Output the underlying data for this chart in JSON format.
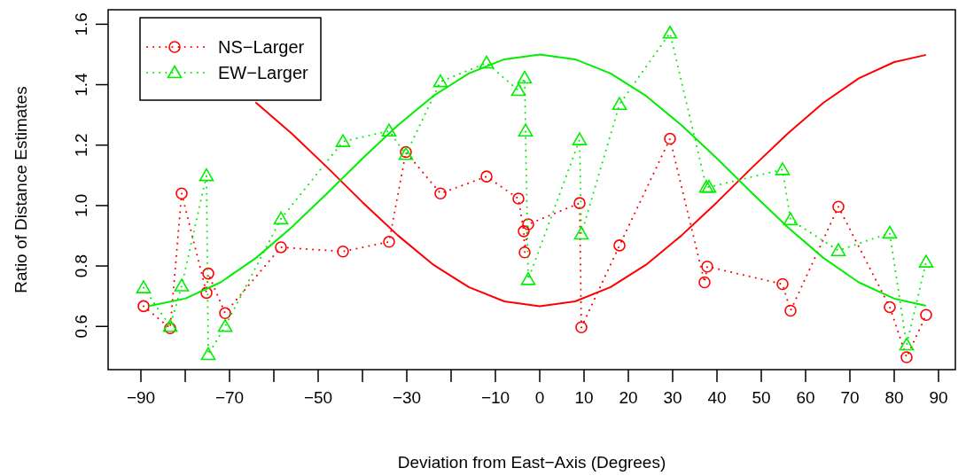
{
  "chart_data": {
    "type": "line",
    "xlabel": "Deviation from East−Axis (Degrees)",
    "ylabel": "Ratio of Distance Estimates",
    "xlim": [
      -97.4,
      93.8
    ],
    "ylim": [
      0.457,
      1.648
    ],
    "xticks": [
      {
        "value": -90,
        "label": "−90"
      },
      {
        "value": -80,
        "label": null
      },
      {
        "value": -70,
        "label": "−70"
      },
      {
        "value": -60,
        "label": null
      },
      {
        "value": -50,
        "label": "−50"
      },
      {
        "value": -40,
        "label": null
      },
      {
        "value": -30,
        "label": "−30"
      },
      {
        "value": -20,
        "label": null
      },
      {
        "value": -10,
        "label": "−10"
      },
      0,
      10,
      20,
      30,
      40,
      50,
      60,
      70,
      80,
      90
    ],
    "yticks": [
      0.6,
      0.8,
      {
        "value": 1,
        "label": "1.0"
      },
      1.2,
      1.4,
      1.6
    ],
    "grid": false,
    "legend": "top left",
    "series": [
      {
        "name": "NS−Larger",
        "color": "#ff0000",
        "marker": "circle",
        "line_style": "dotted",
        "x": [
          -89.4,
          -83.4,
          -80.8,
          -75.2,
          -74.8,
          -71,
          -58.4,
          -44.4,
          -34,
          -30.2,
          -22.4,
          -12,
          -4.8,
          -3.6,
          -3.4,
          -2.6,
          9,
          9.4,
          18,
          29.4,
          37.2,
          37.8,
          54.8,
          56.6,
          67.4,
          79,
          82.8,
          87.2
        ],
        "values": [
          0.667,
          0.594,
          1.04,
          0.711,
          0.775,
          0.644,
          0.862,
          0.848,
          0.88,
          1.177,
          1.04,
          1.096,
          1.023,
          0.915,
          0.845,
          0.938,
          1.008,
          0.597,
          0.868,
          1.221,
          0.746,
          0.798,
          0.74,
          0.652,
          0.996,
          0.664,
          0.498,
          0.638
        ]
      },
      {
        "name": "EW−Larger",
        "color": "#00ee00",
        "marker": "triangle",
        "line_style": "dotted",
        "x": [
          -89.4,
          -83.4,
          -80.8,
          -75.2,
          -74.8,
          -71,
          -58.4,
          -44.4,
          -34,
          -30.2,
          -22.4,
          -12,
          -4.8,
          -3.4,
          -3.2,
          -2.6,
          9,
          9.4,
          18,
          29.4,
          37.6,
          38.2,
          54.8,
          56.6,
          67.4,
          79,
          82.8,
          87.2
        ],
        "values": [
          0.728,
          0.6,
          0.734,
          1.099,
          0.507,
          0.6,
          0.956,
          1.212,
          1.247,
          1.169,
          1.41,
          1.472,
          1.381,
          1.422,
          1.247,
          0.755,
          1.218,
          0.906,
          1.335,
          1.571,
          1.061,
          1.061,
          1.119,
          0.953,
          0.851,
          0.909,
          0.539,
          0.813
        ]
      },
      {
        "color": "#ff0000",
        "marker": "none",
        "line_style": "solid",
        "x": [
          -64,
          -56,
          -48,
          -40,
          -32,
          -24,
          -16,
          -8,
          0,
          8,
          16,
          24,
          32,
          40,
          48,
          56,
          64,
          72,
          80,
          87
        ],
        "values": [
          1.34,
          1.239,
          1.127,
          1.011,
          0.901,
          0.804,
          0.73,
          0.683,
          0.667,
          0.683,
          0.73,
          0.804,
          0.901,
          1.011,
          1.127,
          1.239,
          1.34,
          1.421,
          1.475,
          1.498
        ]
      },
      {
        "color": "#00ee00",
        "marker": "none",
        "line_style": "solid",
        "x": [
          -88,
          -80,
          -72,
          -64,
          -56,
          -48,
          -40,
          -32,
          -24,
          -16,
          -8,
          0,
          8,
          16,
          24,
          32,
          40,
          48,
          56,
          64,
          72,
          80,
          87
        ],
        "values": [
          0.668,
          0.692,
          0.746,
          0.827,
          0.928,
          1.04,
          1.156,
          1.266,
          1.363,
          1.437,
          1.484,
          1.5,
          1.484,
          1.437,
          1.363,
          1.266,
          1.156,
          1.04,
          0.928,
          0.827,
          0.746,
          0.692,
          0.669
        ]
      }
    ]
  }
}
